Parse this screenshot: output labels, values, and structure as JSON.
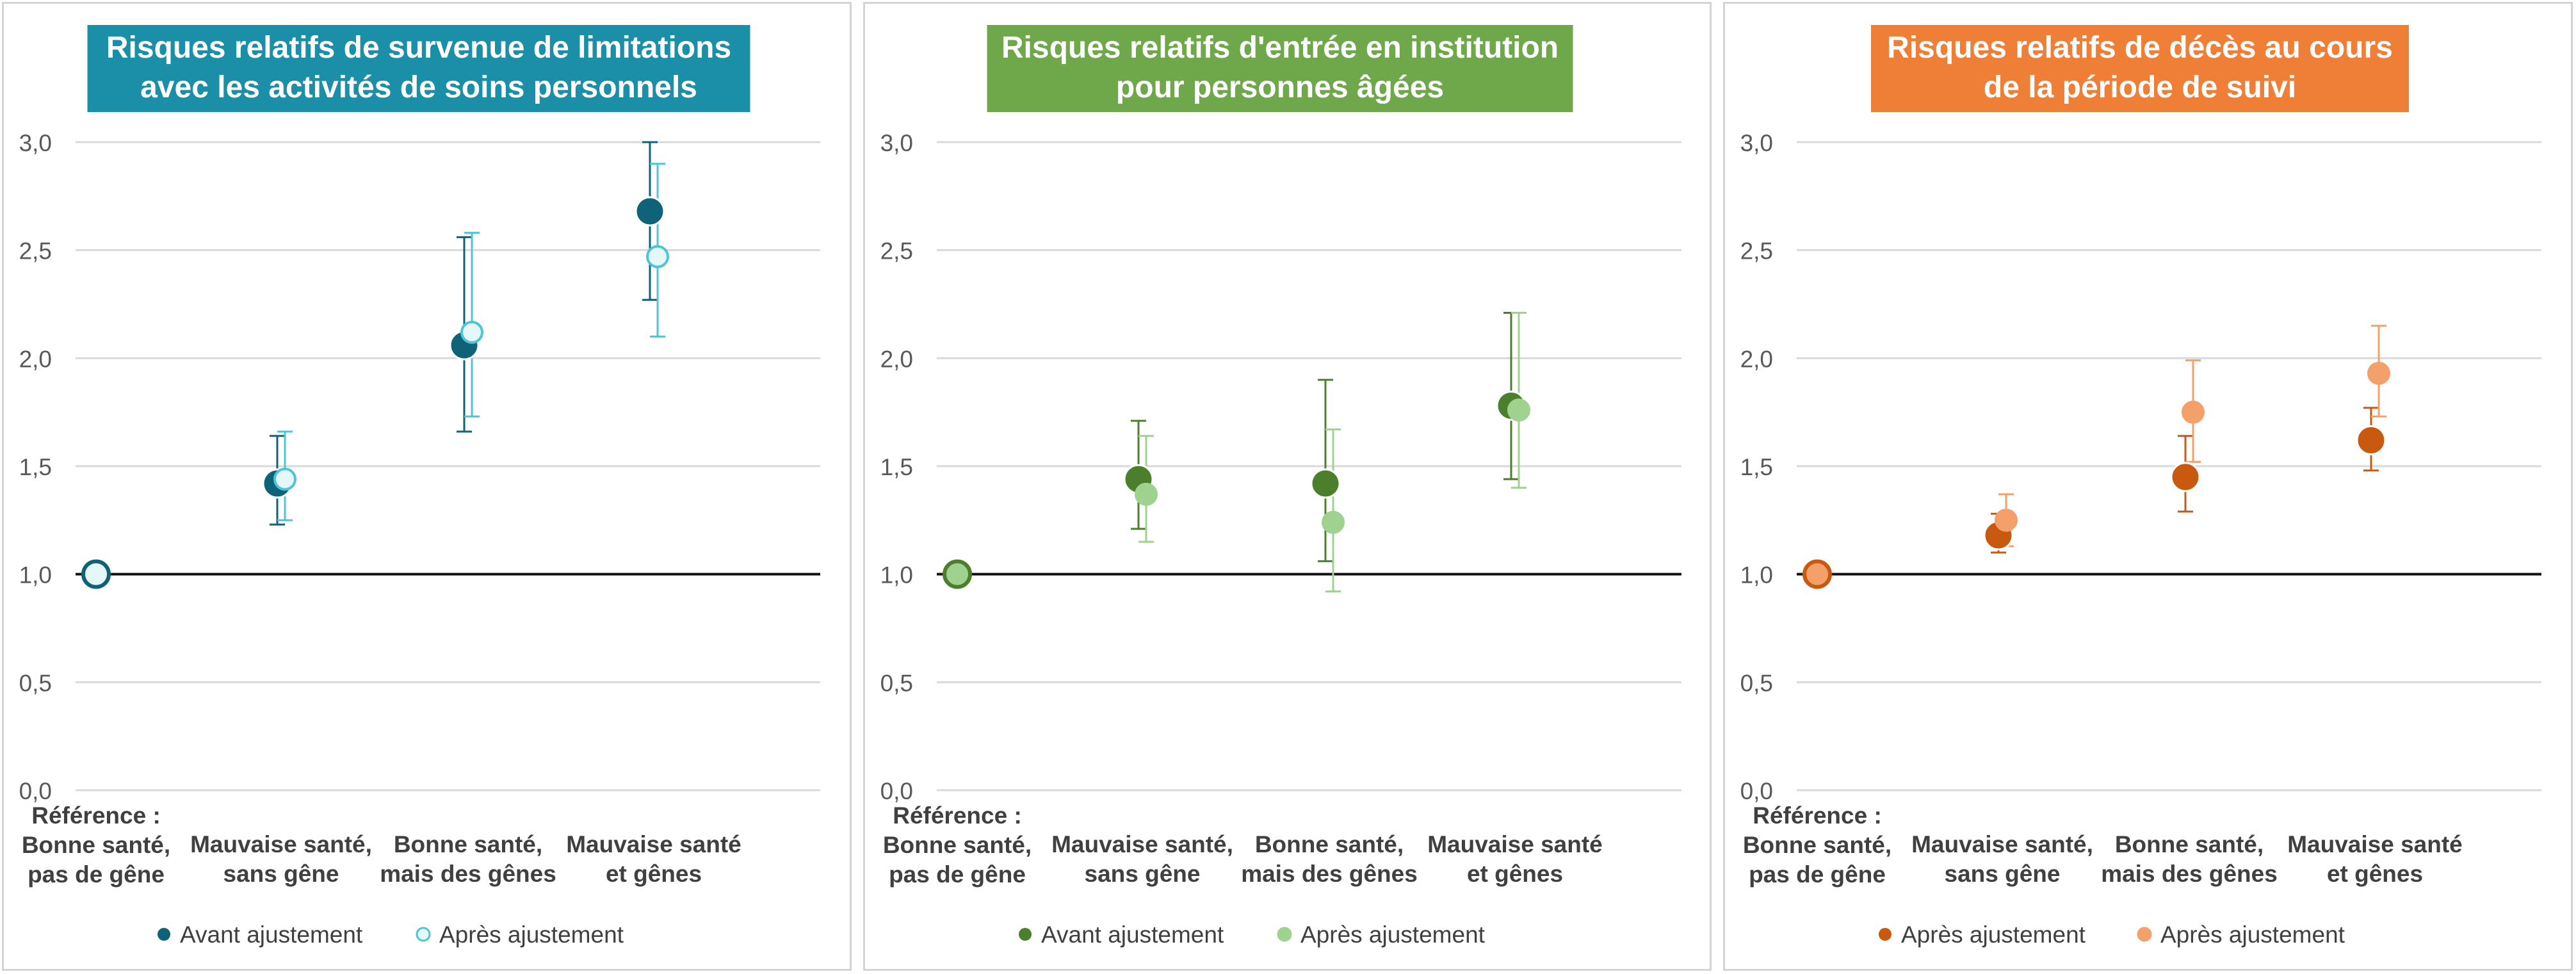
{
  "figure": {
    "categories": [
      [
        "Référence :",
        "Bonne santé,",
        "pas de gêne"
      ],
      [
        "Mauvaise santé,",
        "sans gêne"
      ],
      [
        "Bonne santé,",
        "mais des gênes"
      ],
      [
        "Mauvaise santé",
        "et gênes"
      ]
    ],
    "y_ticks": [
      "0,0",
      "0,5",
      "1,0",
      "1,5",
      "2,0",
      "2,5",
      "3,0"
    ]
  },
  "chart_data": [
    {
      "type": "scatter",
      "title": [
        "Risques relatifs de survenue de limitations",
        "avec les activités de soins personnels"
      ],
      "title_bg": "#1b8fa8",
      "ylim": [
        0,
        3
      ],
      "reference_line": 1.0,
      "grid": true,
      "legend_position": "bottom",
      "series": [
        {
          "name": "Avant ajustement",
          "color": "#0e6378",
          "fill": "#0e6378",
          "marker_size": "large",
          "values": [
            1.0,
            1.42,
            2.06,
            2.68
          ],
          "ci_low": [
            null,
            1.23,
            1.66,
            2.27
          ],
          "ci_high": [
            null,
            1.64,
            2.56,
            3.0
          ]
        },
        {
          "name": "Après ajustement",
          "color": "#4cc5d6",
          "fill": "#e6f7fa",
          "marker_size": "small",
          "values": [
            1.0,
            1.44,
            2.12,
            2.47
          ],
          "ci_low": [
            null,
            1.25,
            1.73,
            2.1
          ],
          "ci_high": [
            null,
            1.66,
            2.58,
            2.9
          ]
        }
      ]
    },
    {
      "type": "scatter",
      "title": [
        "Risques relatifs d'entrée en institution",
        "pour personnes âgées"
      ],
      "title_bg": "#6ea84a",
      "ylim": [
        0,
        3
      ],
      "reference_line": 1.0,
      "grid": true,
      "legend_position": "bottom",
      "series": [
        {
          "name": "Avant ajustement",
          "color": "#4c7f2c",
          "fill": "#4c7f2c",
          "marker_size": "large",
          "values": [
            1.0,
            1.44,
            1.42,
            1.78
          ],
          "ci_low": [
            null,
            1.21,
            1.06,
            1.44
          ],
          "ci_high": [
            null,
            1.71,
            1.9,
            2.21
          ]
        },
        {
          "name": "Après ajustement",
          "color": "#9fd28f",
          "fill": "#9fd28f",
          "marker_size": "small",
          "values": [
            1.0,
            1.37,
            1.24,
            1.76
          ],
          "ci_low": [
            null,
            1.15,
            0.92,
            1.4
          ],
          "ci_high": [
            null,
            1.64,
            1.67,
            2.21
          ]
        }
      ]
    },
    {
      "type": "scatter",
      "title": [
        "Risques relatifs de décès au cours",
        "de la période de suivi"
      ],
      "title_bg": "#ef7f37",
      "ylim": [
        0,
        3
      ],
      "reference_line": 1.0,
      "grid": true,
      "legend_position": "bottom",
      "series": [
        {
          "name": "Après ajustement",
          "color": "#c9590f",
          "fill": "#c9590f",
          "marker_size": "large",
          "values": [
            1.0,
            1.18,
            1.45,
            1.62
          ],
          "ci_low": [
            null,
            1.1,
            1.29,
            1.48
          ],
          "ci_high": [
            null,
            1.28,
            1.64,
            1.77
          ]
        },
        {
          "name": "Après ajustement",
          "color": "#f3a06a",
          "fill": "#f3a06a",
          "marker_size": "small",
          "values": [
            1.0,
            1.25,
            1.75,
            1.93
          ],
          "ci_low": [
            null,
            1.13,
            1.52,
            1.73
          ],
          "ci_high": [
            null,
            1.37,
            1.99,
            2.15
          ]
        }
      ]
    }
  ]
}
